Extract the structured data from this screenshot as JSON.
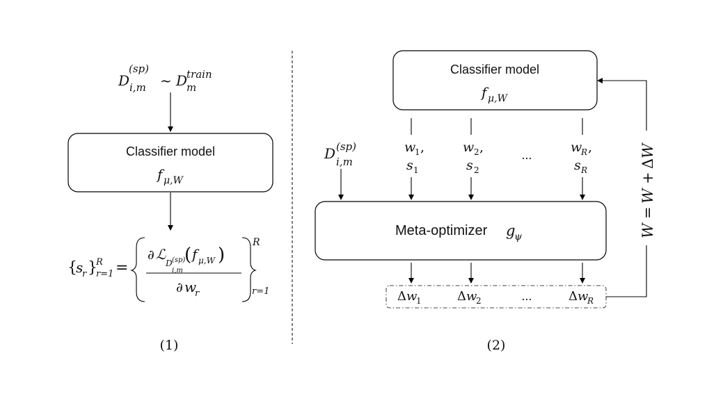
{
  "left": {
    "input_top": "D_{i,m}^{(sp)} ~ D_m^{train}",
    "classifier_title": "Classifier model",
    "classifier_sub": "f_{μ,W}",
    "formula": "{s_r}_{r=1}^R = { ∂L_{D_{i,m}^{(sp)}}(f_{μ,W}) / ∂w_r }_{r=1}^R",
    "caption": "(1)"
  },
  "right": {
    "classifier_title": "Classifier model",
    "classifier_sub": "f_{μ,W}",
    "meta_label": "Meta-optimizer g_ψ",
    "input": "D_{i,m}^{(sp)}",
    "param_labels": [
      "w_1, s_1",
      "w_2, s_2",
      "w_R, s_R"
    ],
    "ellipsis": "...",
    "delta_labels": [
      "Δw_1",
      "Δw_2",
      "Δw_R"
    ],
    "update_rule": "W = W + ΔW",
    "caption": "(2)"
  }
}
